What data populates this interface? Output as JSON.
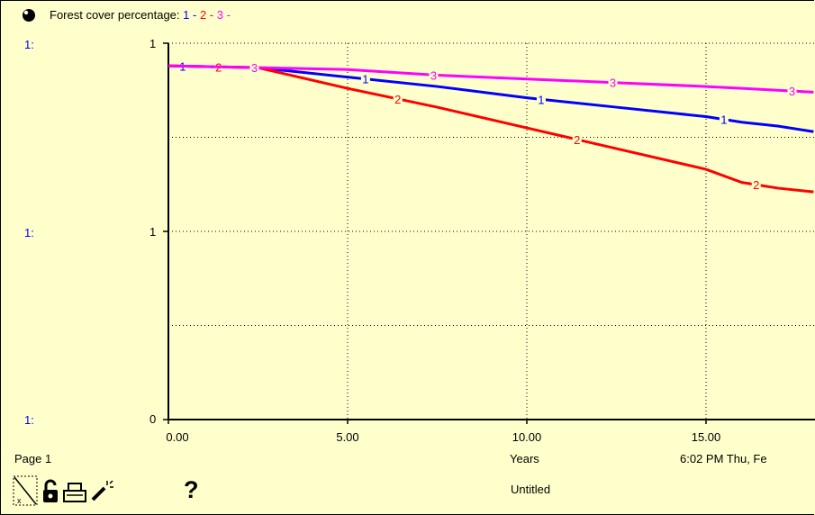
{
  "legend": {
    "label": "Forest cover percentage: ",
    "items": [
      {
        "text": "1",
        "sep": " - ",
        "color": "#0000ff"
      },
      {
        "text": "2",
        "sep": " - ",
        "color": "#ff0000"
      },
      {
        "text": "3",
        "sep": " -",
        "color": "#ff00ff"
      }
    ]
  },
  "y_left_labels": [
    "1:",
    "1:",
    "1:"
  ],
  "y_tick_labels": [
    "1",
    "1",
    "0"
  ],
  "footer": {
    "page": "Page 1",
    "time": "6:02 PM   Thu, Fe",
    "model_name": "Untitled"
  },
  "icons": {
    "header": "ball-icon",
    "resize": "resize-icon",
    "lock": "lock-icon",
    "print": "printer-icon",
    "wand": "magic-wand-icon",
    "help": "question-mark-icon"
  },
  "help_glyph": "?",
  "chart_data": {
    "type": "line",
    "title": "",
    "xlabel": "Years",
    "ylabel": "",
    "xlim": [
      0,
      18
    ],
    "ylim": [
      0,
      1
    ],
    "x_ticks": [
      0,
      5,
      10,
      15
    ],
    "x_tick_labels": [
      "0.00",
      "5.00",
      "10.00",
      "15.00"
    ],
    "grid": true,
    "series": [
      {
        "name": "1",
        "color": "#0000ff",
        "x": [
          0,
          2.5,
          5,
          7.5,
          10,
          12.5,
          15,
          16,
          17,
          18
        ],
        "y": [
          0.94,
          0.935,
          0.91,
          0.885,
          0.855,
          0.83,
          0.805,
          0.79,
          0.78,
          0.765
        ],
        "marker_x": [
          0.4,
          5.5,
          10.4,
          15.5
        ]
      },
      {
        "name": "2",
        "color": "#ff0000",
        "x": [
          0,
          2.5,
          5,
          7.5,
          10,
          12.5,
          15,
          16,
          17,
          18
        ],
        "y": [
          0.94,
          0.935,
          0.88,
          0.83,
          0.775,
          0.72,
          0.665,
          0.63,
          0.615,
          0.605
        ],
        "marker_x": [
          1.4,
          6.4,
          11.4,
          16.4
        ]
      },
      {
        "name": "3",
        "color": "#ff00ff",
        "x": [
          0,
          2.5,
          5,
          7.5,
          10,
          12.5,
          15,
          16,
          17,
          18
        ],
        "y": [
          0.94,
          0.935,
          0.93,
          0.915,
          0.905,
          0.895,
          0.885,
          0.88,
          0.875,
          0.87
        ],
        "marker_x": [
          2.4,
          7.4,
          12.4,
          17.4
        ]
      }
    ]
  }
}
